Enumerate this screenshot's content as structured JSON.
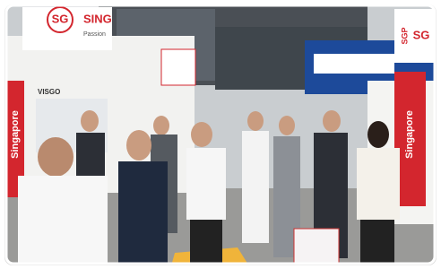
{
  "signs": {
    "left_banner": {
      "logo": "SG",
      "name": "SING",
      "tagline": "Passion"
    },
    "left_booth_brand": "VISGO",
    "left_vertical": "Singapore",
    "right_vertical": "Singapore",
    "right_banner": {
      "logo": "SG",
      "name": "SGP"
    }
  }
}
